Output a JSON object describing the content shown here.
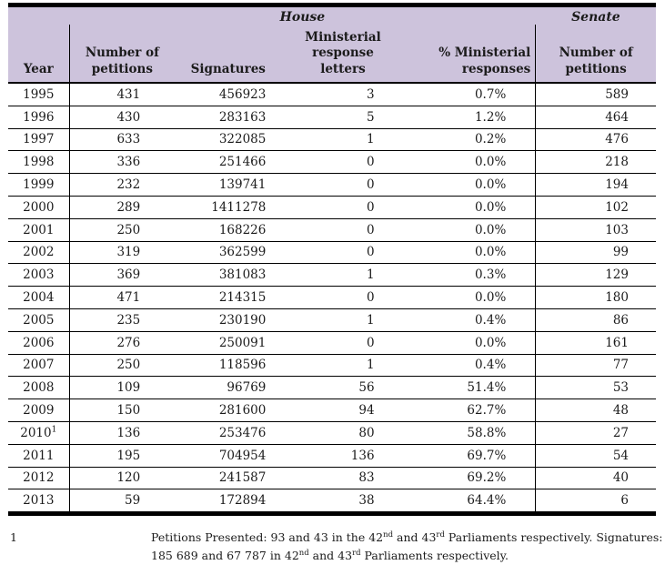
{
  "colors": {
    "header_bg": "#cdc3dc",
    "rule": "#000000",
    "text": "#1b1b1b"
  },
  "table": {
    "group_headers": {
      "house": "House",
      "senate": "Senate"
    },
    "columns": [
      "Year",
      "Number of\npetitions",
      "Signatures",
      "Ministerial\nresponse\nletters",
      "% Ministerial\nresponses",
      "Number of\npetitions"
    ],
    "rows": [
      {
        "year": "1995",
        "petitions": "431",
        "signatures": "456923",
        "letters": "3",
        "pct": "0.7%",
        "senate": "589"
      },
      {
        "year": "1996",
        "petitions": "430",
        "signatures": "283163",
        "letters": "5",
        "pct": "1.2%",
        "senate": "464"
      },
      {
        "year": "1997",
        "petitions": "633",
        "signatures": "322085",
        "letters": "1",
        "pct": "0.2%",
        "senate": "476"
      },
      {
        "year": "1998",
        "petitions": "336",
        "signatures": "251466",
        "letters": "0",
        "pct": "0.0%",
        "senate": "218"
      },
      {
        "year": "1999",
        "petitions": "232",
        "signatures": "139741",
        "letters": "0",
        "pct": "0.0%",
        "senate": "194"
      },
      {
        "year": "2000",
        "petitions": "289",
        "signatures": "1411278",
        "letters": "0",
        "pct": "0.0%",
        "senate": "102"
      },
      {
        "year": "2001",
        "petitions": "250",
        "signatures": "168226",
        "letters": "0",
        "pct": "0.0%",
        "senate": "103"
      },
      {
        "year": "2002",
        "petitions": "319",
        "signatures": "362599",
        "letters": "0",
        "pct": "0.0%",
        "senate": "99"
      },
      {
        "year": "2003",
        "petitions": "369",
        "signatures": "381083",
        "letters": "1",
        "pct": "0.3%",
        "senate": "129"
      },
      {
        "year": "2004",
        "petitions": "471",
        "signatures": "214315",
        "letters": "0",
        "pct": "0.0%",
        "senate": "180"
      },
      {
        "year": "2005",
        "petitions": "235",
        "signatures": "230190",
        "letters": "1",
        "pct": "0.4%",
        "senate": "86"
      },
      {
        "year": "2006",
        "petitions": "276",
        "signatures": "250091",
        "letters": "0",
        "pct": "0.0%",
        "senate": "161"
      },
      {
        "year": "2007",
        "petitions": "250",
        "signatures": "118596",
        "letters": "1",
        "pct": "0.4%",
        "senate": "77"
      },
      {
        "year": "2008",
        "petitions": "109",
        "signatures": "96769",
        "letters": "56",
        "pct": "51.4%",
        "senate": "53"
      },
      {
        "year": "2009",
        "petitions": "150",
        "signatures": "281600",
        "letters": "94",
        "pct": "62.7%",
        "senate": "48"
      },
      {
        "year": "2010",
        "year_sup": "1",
        "petitions": "136",
        "signatures": "253476",
        "letters": "80",
        "pct": "58.8%",
        "senate": "27"
      },
      {
        "year": "2011",
        "petitions": "195",
        "signatures": "704954",
        "letters": "136",
        "pct": "69.7%",
        "senate": "54"
      },
      {
        "year": "2012",
        "petitions": "120",
        "signatures": "241587",
        "letters": "83",
        "pct": "69.2%",
        "senate": "40"
      },
      {
        "year": "2013",
        "petitions": "59",
        "signatures": "172894",
        "letters": "38",
        "pct": "64.4%",
        "senate": "6"
      }
    ]
  },
  "footnote": {
    "marker": "1",
    "lines": [
      [
        {
          "t": "Petitions Presented: 93 and 43 in the 42"
        },
        {
          "s": "nd"
        },
        {
          "t": " and 43"
        },
        {
          "s": "rd"
        },
        {
          "t": " Parliaments respectively. Signatures:"
        }
      ],
      [
        {
          "t": "185 689 and 67 787 in 42"
        },
        {
          "s": "nd"
        },
        {
          "t": " and 43"
        },
        {
          "s": "rd"
        },
        {
          "t": " Parliaments respectively."
        }
      ]
    ]
  }
}
